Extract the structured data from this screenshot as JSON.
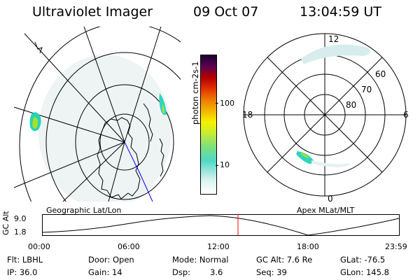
{
  "header": {
    "title": "Ultraviolet Imager",
    "date": "09 Oct 07",
    "time": "13:04:59 UT"
  },
  "colorbar": {
    "label": "photon cm-2s-1",
    "ticks": [
      "100",
      "10"
    ]
  },
  "polar_plot": {
    "mlt_labels": {
      "top": "12",
      "left": "18",
      "right": "6",
      "bottom": "0"
    },
    "lat_labels": [
      "60",
      "70",
      "80"
    ]
  },
  "map_label": "Geographic Lat/Lon",
  "apex_label": "Apex MLat/MLT",
  "altitude_plot": {
    "ylabel": "GC Alt",
    "yticks": [
      "9.0",
      "1.8"
    ],
    "xticks": [
      "00:00",
      "06:00",
      "12:00",
      "18:00",
      "23:59"
    ]
  },
  "info": {
    "row1": [
      "Flt: LBHL",
      "Door: Open",
      "Mode: Normal",
      "GC Alt: 7.6 Re",
      "GLat: -76.5"
    ],
    "row2": [
      "IP: 36.0",
      "Gain: 14",
      "Dsp:",
      "3.6",
      "Seq: 39",
      "GLon: 145.8"
    ]
  },
  "colors": {
    "accent_red": "#ff0000",
    "blue_line": "#0000ff"
  }
}
